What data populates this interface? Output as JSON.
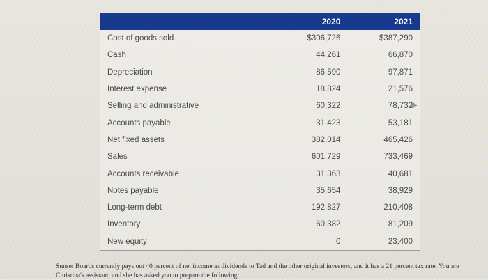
{
  "table": {
    "headers": [
      "",
      "2020",
      "2021"
    ],
    "rows": [
      {
        "label": "Cost of goods sold",
        "y2020": "$306,726",
        "y2021": "$387,290"
      },
      {
        "label": "Cash",
        "y2020": "44,261",
        "y2021": "66,870"
      },
      {
        "label": "Depreciation",
        "y2020": "86,590",
        "y2021": "97,871"
      },
      {
        "label": "Interest expense",
        "y2020": "18,824",
        "y2021": "21,576"
      },
      {
        "label": "Selling and administrative",
        "y2020": "60,322",
        "y2021": "78,732"
      },
      {
        "label": "Accounts payable",
        "y2020": "31,423",
        "y2021": "53,181"
      },
      {
        "label": "Net fixed assets",
        "y2020": "382,014",
        "y2021": "465,426"
      },
      {
        "label": "Sales",
        "y2020": "601,729",
        "y2021": "733,469"
      },
      {
        "label": "Accounts receivable",
        "y2020": "31,363",
        "y2021": "40,681"
      },
      {
        "label": "Notes payable",
        "y2020": "35,654",
        "y2021": "38,929"
      },
      {
        "label": "Long-term debt",
        "y2020": "192,827",
        "y2021": "210,408"
      },
      {
        "label": "Inventory",
        "y2020": "60,382",
        "y2021": "81,209"
      },
      {
        "label": "New equity",
        "y2020": "0",
        "y2021": "23,400"
      }
    ]
  },
  "note": {
    "text": "Sunset Boards currently pays out 40 percent of net income as dividends to Tad and the other original investors, and it has a 21 percent tax rate. You are Christina's assistant, and she has asked you to prepare the following:"
  },
  "colors": {
    "header_bg": "#173a8f",
    "header_text": "#ffffff"
  }
}
